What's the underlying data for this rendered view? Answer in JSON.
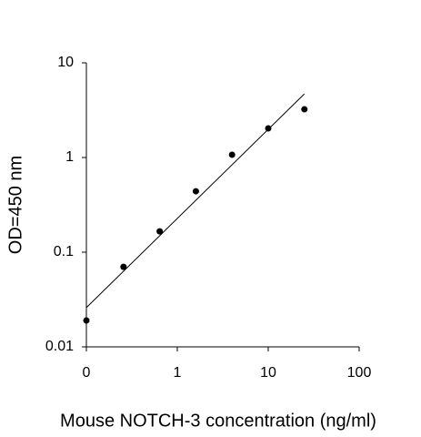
{
  "chart_data": {
    "type": "scatter",
    "x_label": "Mouse NOTCH-3 concentration (ng/ml)",
    "y_label": "OD=450 nm",
    "xscale": "log",
    "yscale": "log",
    "xlim": [
      0.1,
      100
    ],
    "xticks": [
      {
        "value": 0.1,
        "label": "0"
      },
      1,
      10,
      100
    ],
    "ylim": [
      0.01,
      10
    ],
    "yticks": [
      0.01,
      0.1,
      1,
      10
    ],
    "series": [
      {
        "style": "points",
        "color": "#000000",
        "x": [
          0.1,
          0.256,
          0.64,
          1.6,
          4,
          10,
          25
        ],
        "values": [
          0.019,
          0.07,
          0.166,
          0.44,
          1.07,
          2.03,
          3.23
        ]
      },
      {
        "style": "line",
        "color": "#000000",
        "x": [
          0.1,
          25
        ],
        "values": [
          0.026,
          4.7
        ]
      }
    ]
  }
}
